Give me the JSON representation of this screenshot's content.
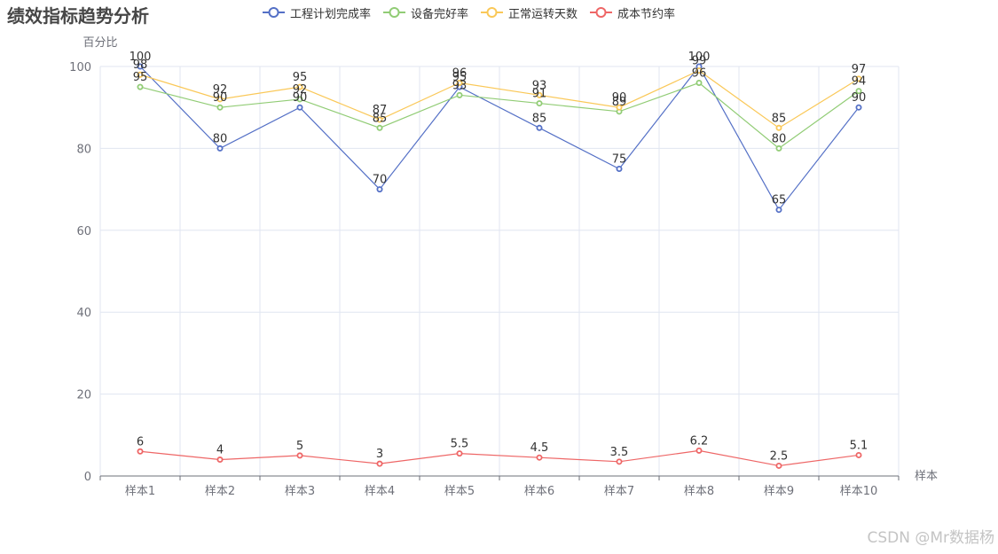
{
  "chart_data": {
    "type": "line",
    "title": "绩效指标趋势分析",
    "xlabel": "样本",
    "ylabel": "百分比",
    "ylim": [
      0,
      100
    ],
    "yticks": [
      0,
      20,
      40,
      60,
      80,
      100
    ],
    "categories": [
      "样本1",
      "样本2",
      "样本3",
      "样本4",
      "样本5",
      "样本6",
      "样本7",
      "样本8",
      "样本9",
      "样本10"
    ],
    "grid": true,
    "legend_position": "top",
    "series": [
      {
        "name": "工程计划完成率",
        "color": "#5470c6",
        "values": [
          100,
          80,
          90,
          70,
          95,
          85,
          75,
          100,
          65,
          90
        ],
        "labels": [
          "100",
          "80",
          "90",
          "70",
          "95",
          "85",
          "75",
          "100",
          "65",
          "90"
        ]
      },
      {
        "name": "设备完好率",
        "color": "#91cc75",
        "values": [
          95,
          90,
          92,
          85,
          93,
          91,
          89,
          96,
          80,
          94
        ],
        "labels": [
          "95",
          "90",
          "92",
          "85",
          "93",
          "91",
          "89",
          "96",
          "80",
          "94"
        ]
      },
      {
        "name": "正常运转天数",
        "color": "#fac858",
        "values": [
          98,
          92,
          95,
          87,
          96,
          93,
          90,
          99,
          85,
          97
        ],
        "labels": [
          "98",
          "92",
          "95",
          "87",
          "96",
          "93",
          "90",
          "99",
          "85",
          "97"
        ]
      },
      {
        "name": "成本节约率",
        "color": "#ee6666",
        "values": [
          6,
          4,
          5,
          3,
          5.5,
          4.5,
          3.5,
          6.2,
          2.5,
          5.1
        ],
        "labels": [
          "6",
          "4",
          "5",
          "3",
          "5.5",
          "4.5",
          "3.5",
          "6.2",
          "2.5",
          "5.1"
        ]
      }
    ]
  },
  "watermark": "CSDN @Mr数据杨"
}
